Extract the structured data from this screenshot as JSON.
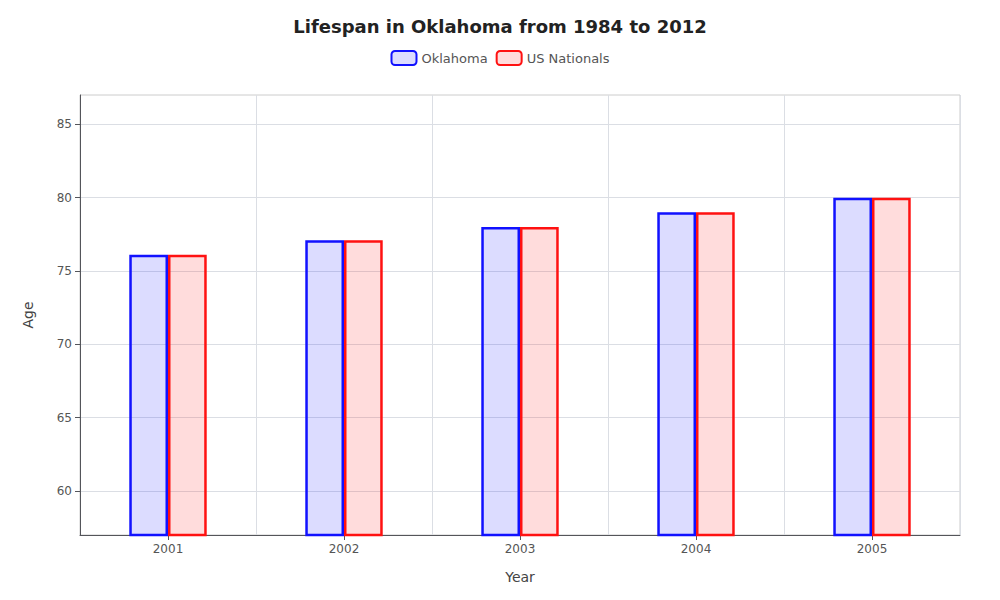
{
  "chart_data": {
    "type": "bar",
    "title": "Lifespan in Oklahoma from 1984 to 2012",
    "x_label": "Year",
    "y_label": "Age",
    "categories": [
      "2001",
      "2002",
      "2003",
      "2004",
      "2005"
    ],
    "series": [
      {
        "name": "Oklahoma",
        "color": "#1111ff",
        "values": [
          76.1,
          77.1,
          78.0,
          79.0,
          80.0
        ]
      },
      {
        "name": "US Nationals",
        "color": "#ff1111",
        "values": [
          76.1,
          77.1,
          78.0,
          79.0,
          80.0
        ]
      }
    ],
    "ylim": [
      57,
      87
    ],
    "yticks": [
      60,
      65,
      70,
      75,
      80,
      85
    ],
    "grid": true,
    "legend": "top"
  }
}
